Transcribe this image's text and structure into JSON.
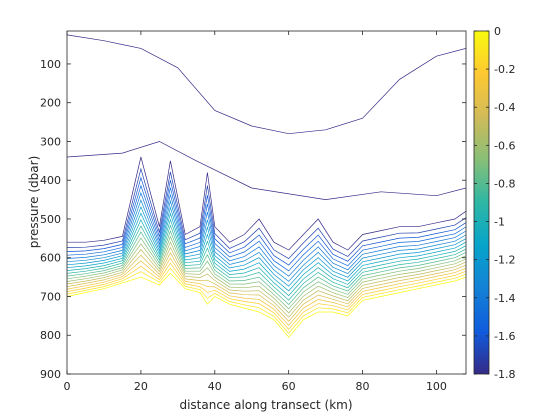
{
  "chart_data": {
    "type": "contour",
    "title": "",
    "xlabel": "distance along transect (km)",
    "ylabel": "pressure (dbar)",
    "xlim": [
      0,
      108
    ],
    "ylim": [
      900,
      15
    ],
    "y_reversed": true,
    "x_ticks": [
      0,
      20,
      40,
      60,
      80,
      100
    ],
    "y_ticks": [
      100,
      200,
      300,
      400,
      500,
      600,
      700,
      800,
      900
    ],
    "colorbar": {
      "range": [
        -1.8,
        0
      ],
      "ticks": [
        0,
        -0.2,
        -0.4,
        -0.6,
        -0.8,
        -1,
        -1.2,
        -1.4,
        -1.6,
        -1.8
      ],
      "colormap": "parula",
      "colors": [
        "#352a87",
        "#0f5cdd",
        "#1481d6",
        "#06a4ca",
        "#2eb7a4",
        "#87bf77",
        "#d1bb59",
        "#fec832",
        "#f9fb0e"
      ]
    },
    "contour_levels": [
      -1.8,
      -1.7,
      -1.6,
      -1.5,
      -1.4,
      -1.3,
      -1.2,
      -1.1,
      -1.0,
      -0.9,
      -0.8,
      -0.7,
      -0.6,
      -0.5,
      -0.4,
      -0.3,
      -0.2,
      -0.1,
      0
    ],
    "deep_front": {
      "description_units": "x in km, y in dbar (depth of warmest contour and top of layer)",
      "x": [
        0,
        5,
        10,
        15,
        20,
        25,
        28,
        32,
        36,
        38,
        40,
        44,
        48,
        52,
        56,
        60,
        64,
        68,
        72,
        76,
        80,
        85,
        90,
        95,
        100,
        105,
        108
      ],
      "bottom_y": [
        700,
        690,
        680,
        665,
        650,
        670,
        640,
        680,
        690,
        720,
        700,
        720,
        730,
        740,
        760,
        805,
        760,
        740,
        740,
        750,
        710,
        700,
        690,
        680,
        670,
        660,
        650
      ],
      "top_y": [
        560,
        560,
        555,
        545,
        340,
        520,
        350,
        540,
        520,
        380,
        520,
        560,
        540,
        500,
        560,
        580,
        540,
        500,
        560,
        580,
        540,
        530,
        520,
        520,
        510,
        500,
        480
      ]
    }
  }
}
